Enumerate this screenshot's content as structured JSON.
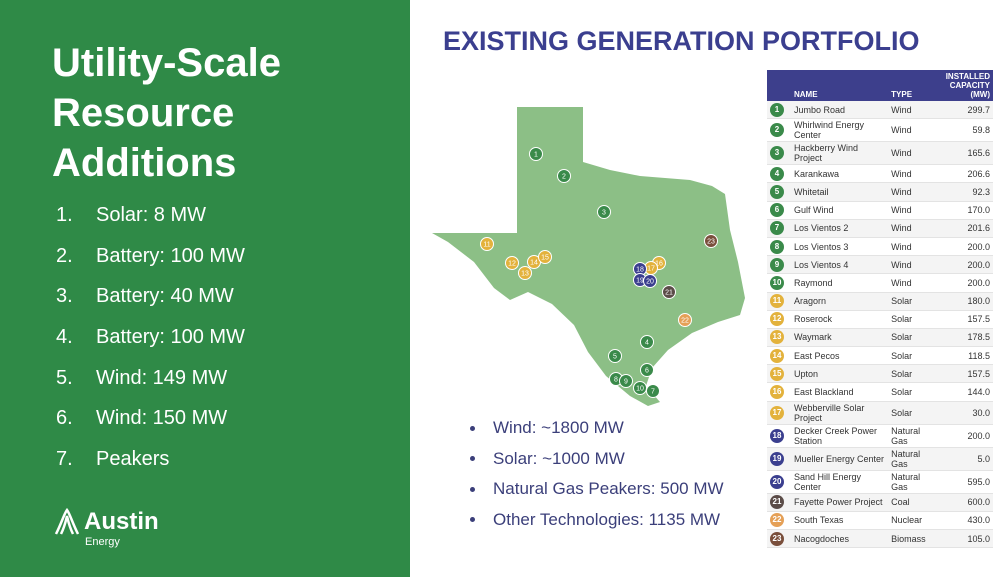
{
  "left": {
    "title": "Utility-Scale Resource Additions",
    "items": [
      {
        "num": "1.",
        "text": "Solar: 8 MW"
      },
      {
        "num": "2.",
        "text": "Battery: 100 MW"
      },
      {
        "num": "3.",
        "text": "Battery: 40 MW"
      },
      {
        "num": "4.",
        "text": "Battery: 100 MW"
      },
      {
        "num": "5.",
        "text": "Wind: 149 MW"
      },
      {
        "num": "6.",
        "text": "Wind: 150 MW"
      },
      {
        "num": "7.",
        "text": "Peakers"
      }
    ],
    "logo": {
      "name": "Austin",
      "sub": "Energy"
    }
  },
  "right": {
    "title": "EXISTING GENERATION PORTFOLIO",
    "bullets": [
      "Wind: ~1800 MW",
      "Solar: ~1000 MW",
      "Natural Gas Peakers: 500 MW",
      "Other Technologies: 1135 MW"
    ]
  },
  "table": {
    "headers": [
      "NAME",
      "TYPE",
      "INSTALLED CAPACITY (MW)"
    ],
    "rows": [
      {
        "num": "1",
        "name": "Jumbo Road",
        "type": "Wind",
        "capacity": "299.7"
      },
      {
        "num": "2",
        "name": "Whirlwind Energy Center",
        "type": "Wind",
        "capacity": "59.8"
      },
      {
        "num": "3",
        "name": "Hackberry Wind Project",
        "type": "Wind",
        "capacity": "165.6"
      },
      {
        "num": "4",
        "name": "Karankawa",
        "type": "Wind",
        "capacity": "206.6"
      },
      {
        "num": "5",
        "name": "Whitetail",
        "type": "Wind",
        "capacity": "92.3"
      },
      {
        "num": "6",
        "name": "Gulf Wind",
        "type": "Wind",
        "capacity": "170.0"
      },
      {
        "num": "7",
        "name": "Los Vientos 2",
        "type": "Wind",
        "capacity": "201.6"
      },
      {
        "num": "8",
        "name": "Los Vientos 3",
        "type": "Wind",
        "capacity": "200.0"
      },
      {
        "num": "9",
        "name": "Los Vientos 4",
        "type": "Wind",
        "capacity": "200.0"
      },
      {
        "num": "10",
        "name": "Raymond",
        "type": "Wind",
        "capacity": "200.0"
      },
      {
        "num": "11",
        "name": "Aragorn",
        "type": "Solar",
        "capacity": "180.0"
      },
      {
        "num": "12",
        "name": "Roserock",
        "type": "Solar",
        "capacity": "157.5"
      },
      {
        "num": "13",
        "name": "Waymark",
        "type": "Solar",
        "capacity": "178.5"
      },
      {
        "num": "14",
        "name": "East Pecos",
        "type": "Solar",
        "capacity": "118.5"
      },
      {
        "num": "15",
        "name": "Upton",
        "type": "Solar",
        "capacity": "157.5"
      },
      {
        "num": "16",
        "name": "East Blackland",
        "type": "Solar",
        "capacity": "144.0"
      },
      {
        "num": "17",
        "name": "Webberville Solar Project",
        "type": "Solar",
        "capacity": "30.0"
      },
      {
        "num": "18",
        "name": "Decker Creek Power Station",
        "type": "Natural Gas",
        "capacity": "200.0"
      },
      {
        "num": "19",
        "name": "Mueller Energy Center",
        "type": "Natural Gas",
        "capacity": "5.0"
      },
      {
        "num": "20",
        "name": "Sand Hill Energy Center",
        "type": "Natural Gas",
        "capacity": "595.0"
      },
      {
        "num": "21",
        "name": "Fayette Power Project",
        "type": "Coal",
        "capacity": "600.0"
      },
      {
        "num": "22",
        "name": "South Texas",
        "type": "Nuclear",
        "capacity": "430.0"
      },
      {
        "num": "23",
        "name": "Nacogdoches",
        "type": "Biomass",
        "capacity": "105.0"
      }
    ]
  }
}
